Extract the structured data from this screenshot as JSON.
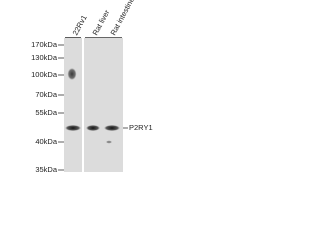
{
  "lanes": [
    "22Rv1",
    "Rat liver",
    "Rat intestine"
  ],
  "markers": [
    "170kDa",
    "130kDa",
    "100kDa",
    "70kDa",
    "55kDa",
    "40kDa",
    "35kDa"
  ],
  "band_label": "P2RY1"
}
